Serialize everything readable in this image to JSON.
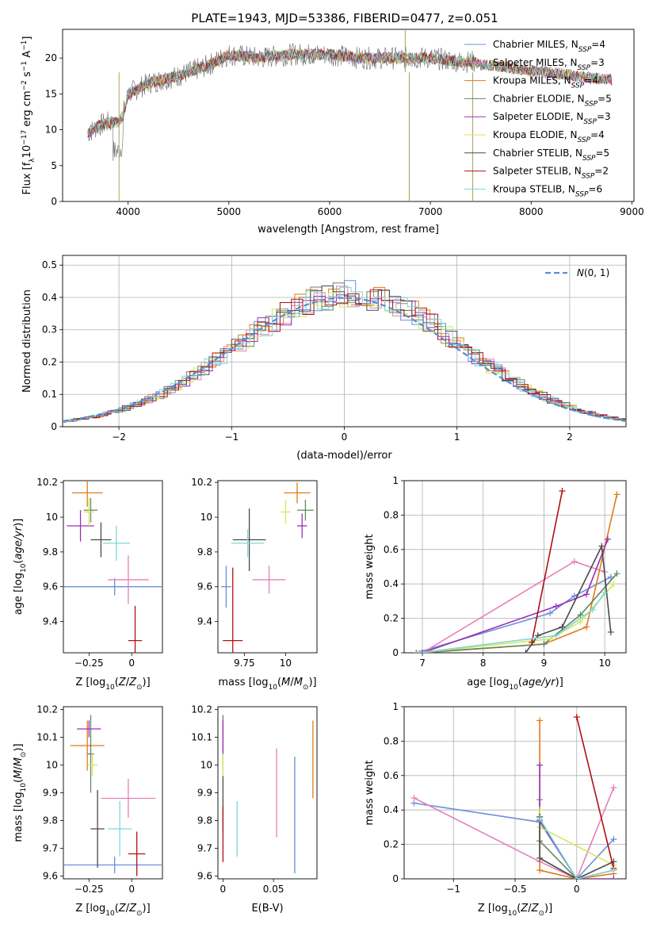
{
  "figure": {
    "title": "PLATE=1943, MJD=53386, FIBERID=0477, z=0.051"
  },
  "series_styles": [
    {
      "name": "Chabrier MILES",
      "nssp_label": "N",
      "nssp_sub": "SSP",
      "nssp_val": "=4",
      "color": "#6a8fdc"
    },
    {
      "name": "Salpeter MILES",
      "nssp_label": "N",
      "nssp_sub": "SSP",
      "nssp_val": "=3",
      "color": "#e57fb9"
    },
    {
      "name": "Kroupa MILES",
      "nssp_label": "N",
      "nssp_sub": "SSP",
      "nssp_val": "=4",
      "color": "#e07a1a"
    },
    {
      "name": "Chabrier ELODIE",
      "nssp_label": "N",
      "nssp_sub": "SSP",
      "nssp_val": "=5",
      "color": "#5f8a5f"
    },
    {
      "name": "Salpeter ELODIE",
      "nssp_label": "N",
      "nssp_sub": "SSP",
      "nssp_val": "=3",
      "color": "#9b30b5"
    },
    {
      "name": "Kroupa ELODIE",
      "nssp_label": "N",
      "nssp_sub": "SSP",
      "nssp_val": "=4",
      "color": "#d6e75a"
    },
    {
      "name": "Chabrier STELIB",
      "nssp_label": "N",
      "nssp_sub": "SSP",
      "nssp_val": "=5",
      "color": "#4a4a4a"
    },
    {
      "name": "Salpeter STELIB",
      "nssp_label": "N",
      "nssp_sub": "SSP",
      "nssp_val": "=2",
      "color": "#b01010"
    },
    {
      "name": "Kroupa STELIB",
      "nssp_label": "N",
      "nssp_sub": "SSP",
      "nssp_val": "=6",
      "color": "#7fd6d6"
    }
  ],
  "chart_data": [
    {
      "id": "spectrum",
      "type": "line",
      "xlabel": "wavelength [Angstrom, rest frame]",
      "ylabel": "Flux [f",
      "ylabel_full": "Flux [f_λ 10^-17 erg cm^-2 s^-1 A^-1]",
      "xlim": [
        3350,
        9020
      ],
      "ylim": [
        0,
        24
      ],
      "xticks": [
        4000,
        5000,
        6000,
        7000,
        8000,
        9000
      ],
      "yticks": [
        0,
        5,
        10,
        15,
        20
      ],
      "continuum": {
        "x": [
          3600,
          3700,
          3800,
          3900,
          3950,
          4000,
          4200,
          4500,
          4800,
          5000,
          5300,
          5600,
          6000,
          6300,
          6600,
          7000,
          7300,
          7450
        ],
        "y": [
          9.5,
          10.5,
          11,
          11,
          12,
          15,
          16.5,
          17.5,
          19,
          20.5,
          20,
          20.5,
          20.5,
          20,
          20,
          20,
          19.5,
          19.5
        ]
      },
      "model_continuum": {
        "x": [
          7450,
          7700,
          8000,
          8300,
          8600,
          8800
        ],
        "y": [
          19.2,
          18.8,
          18.2,
          17.8,
          17.2,
          17.0
        ]
      }
    },
    {
      "id": "residuals",
      "type": "histogram",
      "xlabel": "(data-model)/error",
      "ylabel": "Normed distribution",
      "xlim": [
        -2.5,
        2.5
      ],
      "ylim": [
        0,
        0.53
      ],
      "xticks": [
        -2,
        -1,
        0,
        1,
        2
      ],
      "yticks": [
        0.0,
        0.1,
        0.2,
        0.3,
        0.4,
        0.5
      ],
      "legend": "N(0,1)",
      "gaussian_color": "#5b8ad6"
    },
    {
      "id": "z-age",
      "type": "errorbar",
      "xlabel": "Z [log",
      "ylabel": "age",
      "xlim": [
        -0.4,
        0.18
      ],
      "ylim": [
        9.22,
        10.21
      ],
      "xticks": [
        -0.25,
        0.0
      ],
      "yticks": [
        9.4,
        9.6,
        9.8,
        10.0,
        10.2
      ],
      "points": [
        {
          "x": -0.1,
          "y": 9.6,
          "xerr": 0.3,
          "yerr": 0.05,
          "series": 0
        },
        {
          "x": -0.02,
          "y": 9.64,
          "xerr": 0.12,
          "yerr": 0.14,
          "series": 1
        },
        {
          "x": -0.26,
          "y": 10.14,
          "xerr": 0.09,
          "yerr": 0.08,
          "series": 2
        },
        {
          "x": -0.24,
          "y": 10.04,
          "xerr": 0.04,
          "yerr": 0.07,
          "series": 3
        },
        {
          "x": -0.3,
          "y": 9.95,
          "xerr": 0.08,
          "yerr": 0.09,
          "series": 4
        },
        {
          "x": -0.25,
          "y": 10.03,
          "xerr": 0.03,
          "yerr": 0.08,
          "series": 5
        },
        {
          "x": -0.18,
          "y": 9.87,
          "xerr": 0.06,
          "yerr": 0.1,
          "series": 6
        },
        {
          "x": 0.02,
          "y": 9.29,
          "xerr": 0.04,
          "yerr": 0.2,
          "series": 7
        },
        {
          "x": -0.09,
          "y": 9.85,
          "xerr": 0.08,
          "yerr": 0.1,
          "series": 8
        }
      ]
    },
    {
      "id": "mass-age",
      "type": "errorbar",
      "xlabel": "mass [log",
      "ylabel": "",
      "xlim": [
        9.59,
        10.19
      ],
      "ylim": [
        9.22,
        10.21
      ],
      "xticks": [
        9.75,
        10.0
      ],
      "yticks": [
        9.4,
        9.6,
        9.8,
        10.0,
        10.2
      ],
      "points": [
        {
          "x": 9.64,
          "y": 9.6,
          "xerr": 0.03,
          "yerr": 0.12,
          "series": 0
        },
        {
          "x": 9.9,
          "y": 9.64,
          "xerr": 0.1,
          "yerr": 0.08,
          "series": 1
        },
        {
          "x": 10.07,
          "y": 10.14,
          "xerr": 0.08,
          "yerr": 0.06,
          "series": 2
        },
        {
          "x": 10.12,
          "y": 10.04,
          "xerr": 0.05,
          "yerr": 0.06,
          "series": 3
        },
        {
          "x": 10.1,
          "y": 9.95,
          "xerr": 0.03,
          "yerr": 0.07,
          "series": 4
        },
        {
          "x": 10.0,
          "y": 10.03,
          "xerr": 0.03,
          "yerr": 0.07,
          "series": 5
        },
        {
          "x": 9.78,
          "y": 9.87,
          "xerr": 0.1,
          "yerr": 0.18,
          "series": 6
        },
        {
          "x": 9.68,
          "y": 9.29,
          "xerr": 0.06,
          "yerr": 0.42,
          "series": 7
        },
        {
          "x": 9.77,
          "y": 9.85,
          "xerr": 0.1,
          "yerr": 0.08,
          "series": 8
        }
      ]
    },
    {
      "id": "age-weight",
      "type": "line",
      "xlabel": "age  [log",
      "ylabel": "mass weight",
      "xlim": [
        6.7,
        10.35
      ],
      "ylim": [
        0,
        1.0
      ],
      "xticks": [
        7,
        8,
        9,
        10
      ],
      "yticks": [
        0.0,
        0.2,
        0.4,
        0.6,
        0.8,
        1.0
      ],
      "series": [
        {
          "series": 0,
          "x": [
            6.9,
            9.1,
            9.5,
            10.1
          ],
          "y": [
            0.0,
            0.23,
            0.33,
            0.44
          ]
        },
        {
          "series": 1,
          "x": [
            7.0,
            9.5,
            10.0
          ],
          "y": [
            0.0,
            0.53,
            0.47
          ]
        },
        {
          "series": 2,
          "x": [
            6.9,
            9.0,
            9.7,
            10.2
          ],
          "y": [
            0.0,
            0.05,
            0.15,
            0.92
          ]
        },
        {
          "series": 3,
          "x": [
            7.0,
            9.0,
            9.6,
            10.2
          ],
          "y": [
            0.0,
            0.05,
            0.22,
            0.46
          ]
        },
        {
          "series": 4,
          "x": [
            7.0,
            9.2,
            9.7,
            10.05
          ],
          "y": [
            0.0,
            0.27,
            0.34,
            0.66
          ]
        },
        {
          "series": 5,
          "x": [
            6.95,
            9.1,
            9.6,
            10.15
          ],
          "y": [
            0.0,
            0.08,
            0.18,
            0.4
          ]
        },
        {
          "series": 6,
          "x": [
            8.7,
            8.9,
            9.3,
            9.95,
            10.1
          ],
          "y": [
            0.0,
            0.1,
            0.15,
            0.62,
            0.12
          ]
        },
        {
          "series": 7,
          "x": [
            8.8,
            9.3
          ],
          "y": [
            0.06,
            0.94
          ]
        },
        {
          "series": 8,
          "x": [
            6.95,
            9.2,
            9.8,
            10.0
          ],
          "y": [
            0.0,
            0.1,
            0.25,
            0.35
          ]
        }
      ]
    },
    {
      "id": "z-mass",
      "type": "errorbar",
      "xlabel": "Z [log",
      "ylabel": "mass [log",
      "xlim": [
        -0.4,
        0.18
      ],
      "ylim": [
        9.59,
        10.21
      ],
      "xticks": [
        -0.25,
        0.0
      ],
      "yticks": [
        9.6,
        9.7,
        9.8,
        9.9,
        10.0,
        10.1,
        10.2
      ],
      "points": [
        {
          "x": -0.1,
          "y": 9.64,
          "xerr": 0.3,
          "yerr": 0.03,
          "series": 0
        },
        {
          "x": -0.02,
          "y": 9.88,
          "xerr": 0.16,
          "yerr": 0.07,
          "series": 1
        },
        {
          "x": -0.26,
          "y": 10.07,
          "xerr": 0.1,
          "yerr": 0.09,
          "series": 2
        },
        {
          "x": -0.24,
          "y": 10.04,
          "xerr": 0.02,
          "yerr": 0.14,
          "series": 3
        },
        {
          "x": -0.25,
          "y": 10.13,
          "xerr": 0.07,
          "yerr": 0.03,
          "series": 4
        },
        {
          "x": -0.23,
          "y": 10.0,
          "xerr": 0.03,
          "yerr": 0.04,
          "series": 5
        },
        {
          "x": -0.2,
          "y": 9.77,
          "xerr": 0.04,
          "yerr": 0.14,
          "series": 6
        },
        {
          "x": 0.03,
          "y": 9.68,
          "xerr": 0.05,
          "yerr": 0.08,
          "series": 7
        },
        {
          "x": -0.07,
          "y": 9.77,
          "xerr": 0.07,
          "yerr": 0.1,
          "series": 8
        }
      ]
    },
    {
      "id": "ebv-mass",
      "type": "errorbar",
      "xlabel": "E(B-V)",
      "ylabel": "",
      "xlim": [
        -0.005,
        0.093
      ],
      "ylim": [
        9.59,
        10.21
      ],
      "xticks": [
        0.0,
        0.05
      ],
      "yticks": [
        9.6,
        9.7,
        9.8,
        9.9,
        10.0,
        10.1,
        10.2
      ],
      "points": [
        {
          "x": 0.071,
          "y": 9.82,
          "xerr": 0,
          "yerr": 0.21,
          "series": 0
        },
        {
          "x": 0.053,
          "y": 9.9,
          "xerr": 0,
          "yerr": 0.16,
          "series": 1
        },
        {
          "x": 0.089,
          "y": 10.02,
          "xerr": 0,
          "yerr": 0.14,
          "series": 2
        },
        {
          "x": 0.0,
          "y": 10.08,
          "xerr": 0,
          "yerr": 0.1,
          "series": 3
        },
        {
          "x": 0.0,
          "y": 10.1,
          "xerr": 0,
          "yerr": 0.06,
          "series": 4
        },
        {
          "x": 0.0,
          "y": 10.0,
          "xerr": 0,
          "yerr": 0.04,
          "series": 5
        },
        {
          "x": 0.0,
          "y": 9.86,
          "xerr": 0,
          "yerr": 0.1,
          "series": 6
        },
        {
          "x": 0.0,
          "y": 9.75,
          "xerr": 0,
          "yerr": 0.1,
          "series": 7
        },
        {
          "x": 0.014,
          "y": 9.77,
          "xerr": 0,
          "yerr": 0.1,
          "series": 8
        }
      ]
    },
    {
      "id": "z-weight",
      "type": "line",
      "xlabel": "Z [log",
      "ylabel": "mass weight",
      "xlim": [
        -1.4,
        0.4
      ],
      "ylim": [
        0,
        1.0
      ],
      "xticks": [
        -1.0,
        -0.5,
        0.0
      ],
      "yticks": [
        0.0,
        0.2,
        0.4,
        0.6,
        0.8,
        1.0
      ],
      "series": [
        {
          "series": 0,
          "x": [
            -1.32,
            -0.3,
            0.0,
            0.3
          ],
          "y": [
            0.44,
            0.33,
            0.0,
            0.23
          ]
        },
        {
          "series": 1,
          "x": [
            -1.32,
            -0.3,
            0.0,
            0.3
          ],
          "y": [
            0.47,
            0.1,
            0.0,
            0.53
          ]
        },
        {
          "series": 2,
          "x": [
            -0.3,
            -0.3,
            0.0,
            0.3
          ],
          "y": [
            0.92,
            0.05,
            0.0,
            0.03
          ]
        },
        {
          "series": 3,
          "x": [
            -0.3,
            -0.3,
            0.0,
            0.3
          ],
          "y": [
            0.46,
            0.22,
            0.0,
            0.05
          ]
        },
        {
          "series": 4,
          "x": [
            -0.3,
            -0.3,
            0.0,
            0.3
          ],
          "y": [
            0.66,
            0.34,
            0.0,
            0.0
          ]
        },
        {
          "series": 5,
          "x": [
            -0.3,
            -0.3,
            0.3
          ],
          "y": [
            0.4,
            0.3,
            0.08
          ]
        },
        {
          "series": 6,
          "x": [
            -0.3,
            -0.3,
            0.0,
            0.3
          ],
          "y": [
            0.36,
            0.12,
            0.0,
            0.1
          ]
        },
        {
          "series": 7,
          "x": [
            0.0,
            0.3
          ],
          "y": [
            0.94,
            0.06
          ]
        },
        {
          "series": 8,
          "x": [
            -0.3,
            0.0,
            0.3
          ],
          "y": [
            0.35,
            0.0,
            0.05
          ]
        }
      ]
    }
  ]
}
